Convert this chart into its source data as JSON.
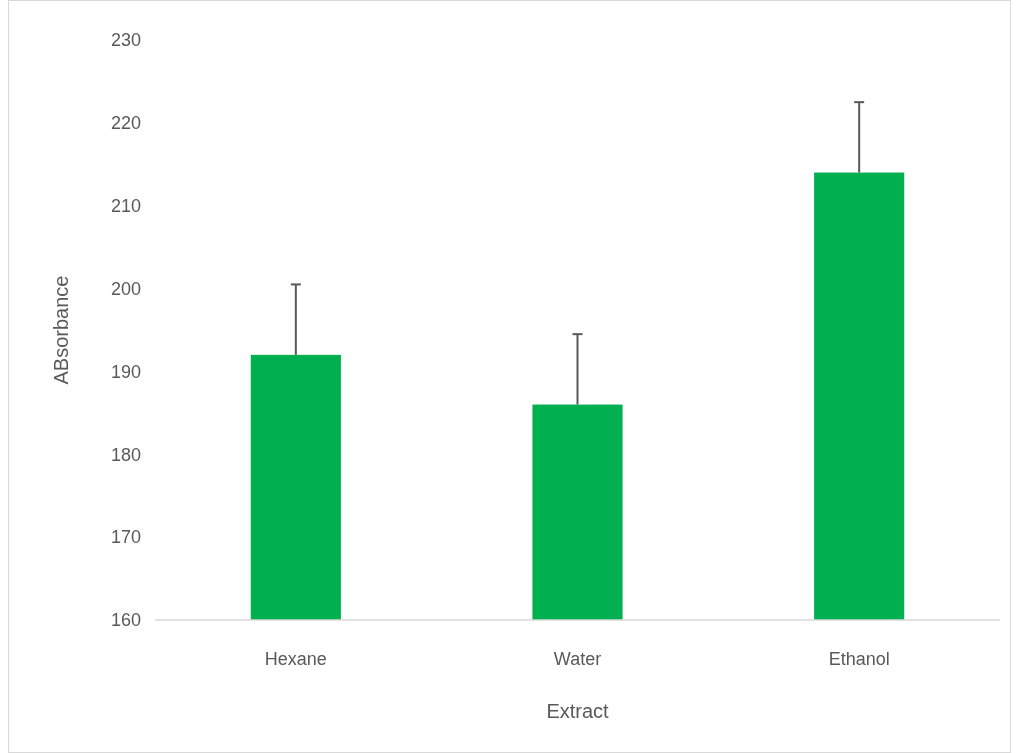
{
  "chart_data": {
    "type": "bar",
    "xlabel": "Extract",
    "ylabel": "ABsorbance",
    "categories": [
      "Hexane",
      "Water",
      "Ethanol"
    ],
    "values": [
      192,
      186,
      214
    ],
    "errors": [
      [
        192,
        200.5
      ],
      [
        186,
        194.5
      ],
      [
        214,
        222.5
      ]
    ],
    "color": "#00b050",
    "ylim": [
      160,
      230
    ],
    "yticks": [
      160,
      170,
      180,
      190,
      200,
      210,
      220,
      230
    ],
    "grid": false
  }
}
